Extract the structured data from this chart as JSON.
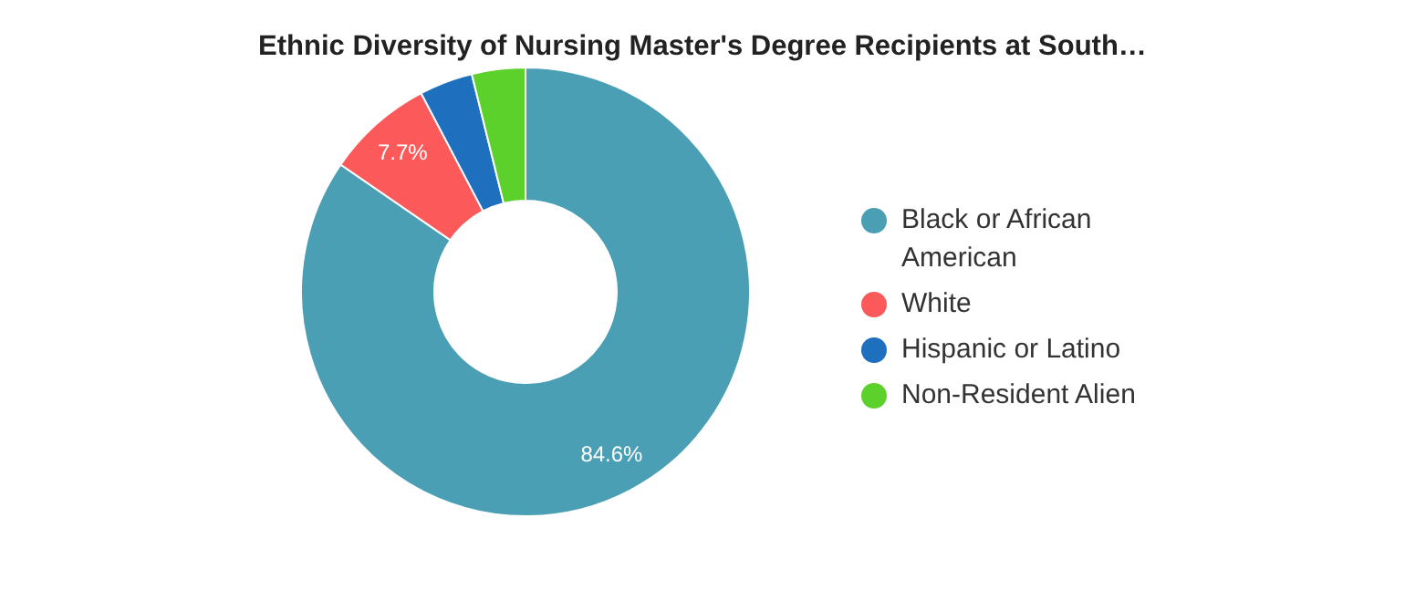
{
  "chart_data": {
    "type": "donut",
    "title": "Ethnic Diversity of Nursing Master's Degree Recipients at South…",
    "categories": [
      "Black or African American",
      "White",
      "Hispanic or Latino",
      "Non-Resident Alien"
    ],
    "values": [
      84.6,
      7.7,
      3.85,
      3.85
    ],
    "colors": [
      "#4a9fb5",
      "#fc5a5a",
      "#1f6fbf",
      "#5cd12c"
    ],
    "value_labels": [
      "84.6%",
      "7.7%",
      null,
      null
    ],
    "legend": "right"
  }
}
